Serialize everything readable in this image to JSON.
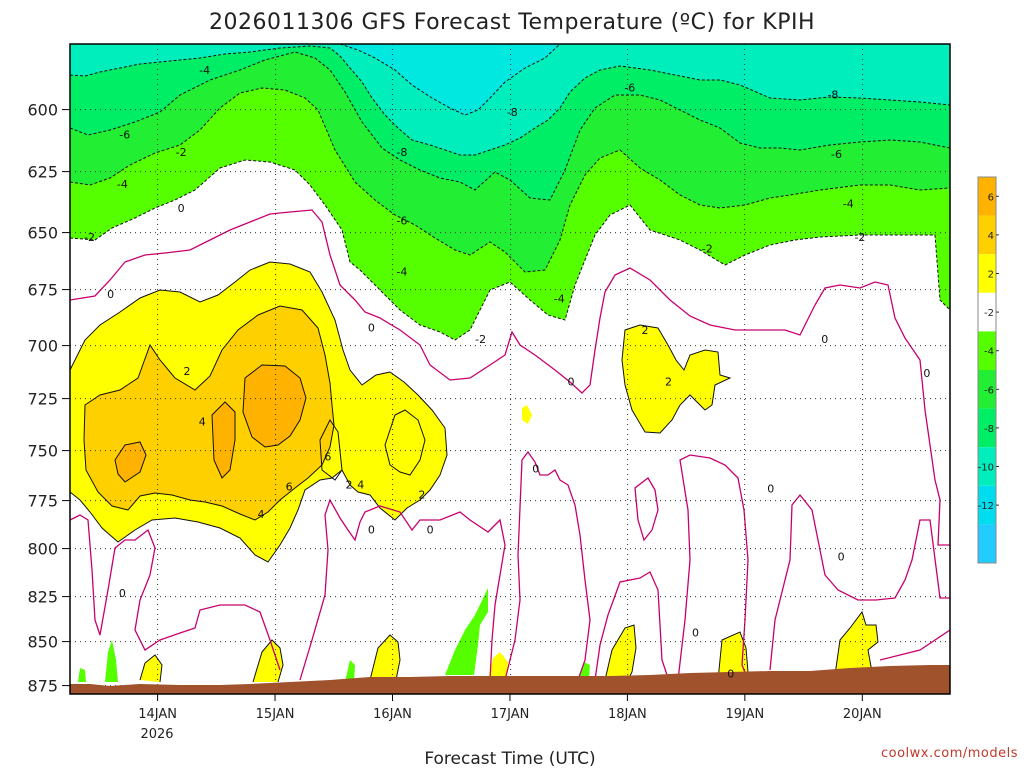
{
  "chart_data": {
    "type": "heatmap",
    "title": "2026011306 GFS Forecast Temperature (ºC) for KPIH",
    "xlabel": "Forecast Time (UTC)",
    "ylabel": "",
    "x_ticks": [
      "14JAN",
      "15JAN",
      "16JAN",
      "17JAN",
      "18JAN",
      "19JAN",
      "20JAN"
    ],
    "x_subtick": "2026",
    "y_ticks": [
      600,
      625,
      650,
      675,
      700,
      725,
      750,
      775,
      800,
      825,
      850,
      875
    ],
    "y_unit": "hPa",
    "ylim": [
      877,
      580
    ],
    "grid": true,
    "colorbar": {
      "ticks": [
        6,
        4,
        2,
        -2,
        -4,
        -6,
        -8,
        -10,
        -12
      ],
      "colors": [
        "#ffb300",
        "#ffd000",
        "#ffff00",
        "#ffffff",
        "#55ff00",
        "#22ee33",
        "#00ee66",
        "#00eebb",
        "#00ddee",
        "#22ccff"
      ]
    },
    "contour_labels": [
      {
        "text": "-4",
        "t": 1.15,
        "p": 584
      },
      {
        "text": "-6",
        "t": 0.47,
        "p": 610
      },
      {
        "text": "-4",
        "t": 0.45,
        "p": 630
      },
      {
        "text": "-2",
        "t": 0.17,
        "p": 652
      },
      {
        "text": "0",
        "t": 0.35,
        "p": 677
      },
      {
        "text": "-2",
        "t": 0.95,
        "p": 617
      },
      {
        "text": "0",
        "t": 0.95,
        "p": 640
      },
      {
        "text": "2",
        "t": 1.0,
        "p": 712
      },
      {
        "text": "4",
        "t": 1.13,
        "p": 736
      },
      {
        "text": "6",
        "t": 1.87,
        "p": 768
      },
      {
        "text": "6",
        "t": 2.2,
        "p": 753
      },
      {
        "text": "4",
        "t": 1.63,
        "p": 782
      },
      {
        "text": "2",
        "t": 2.38,
        "p": 767
      },
      {
        "text": "4",
        "t": 2.48,
        "p": 767
      },
      {
        "text": "0",
        "t": 0.45,
        "p": 823
      },
      {
        "text": "-8",
        "t": 2.83,
        "p": 617
      },
      {
        "text": "-6",
        "t": 2.83,
        "p": 645
      },
      {
        "text": "-4",
        "t": 2.83,
        "p": 667
      },
      {
        "text": "0",
        "t": 2.57,
        "p": 692
      },
      {
        "text": "0",
        "t": 2.57,
        "p": 790
      },
      {
        "text": "2",
        "t": 3.0,
        "p": 772
      },
      {
        "text": "0",
        "t": 3.07,
        "p": 790
      },
      {
        "text": "-2",
        "t": 3.5,
        "p": 697
      },
      {
        "text": "-8",
        "t": 3.77,
        "p": 601
      },
      {
        "text": "0",
        "t": 3.97,
        "p": 759
      },
      {
        "text": "-4",
        "t": 4.17,
        "p": 679
      },
      {
        "text": "0",
        "t": 4.27,
        "p": 717
      },
      {
        "text": "-6",
        "t": 4.77,
        "p": 591
      },
      {
        "text": "2",
        "t": 4.9,
        "p": 693
      },
      {
        "text": "2",
        "t": 5.1,
        "p": 717
      },
      {
        "text": "-2",
        "t": 5.43,
        "p": 657
      },
      {
        "text": "0",
        "t": 5.33,
        "p": 845
      },
      {
        "text": "0",
        "t": 5.97,
        "p": 769
      },
      {
        "text": "0",
        "t": 5.63,
        "p": 868
      },
      {
        "text": "-8",
        "t": 6.5,
        "p": 594
      },
      {
        "text": "-6",
        "t": 6.53,
        "p": 618
      },
      {
        "text": "-4",
        "t": 6.63,
        "p": 638
      },
      {
        "text": "-2",
        "t": 6.73,
        "p": 652
      },
      {
        "text": "0",
        "t": 6.43,
        "p": 697
      },
      {
        "text": "0",
        "t": 6.57,
        "p": 804
      },
      {
        "text": "0",
        "t": 7.3,
        "p": 713
      }
    ]
  },
  "credit": "coolwx.com/models"
}
